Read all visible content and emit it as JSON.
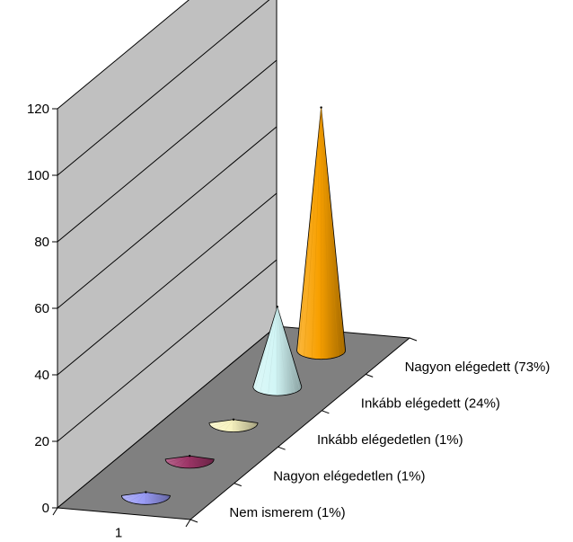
{
  "chart_data": {
    "type": "bar",
    "shape": "cone",
    "projection": "3d",
    "categories": [
      "1"
    ],
    "series": [
      {
        "name": "Nem ismerem (1%)",
        "values": [
          1
        ],
        "color": "#9a9cf6"
      },
      {
        "name": "Nagyon elégedetlen (1%)",
        "values": [
          1
        ],
        "color": "#9e3668"
      },
      {
        "name": "Inkább elégedetlen (1%)",
        "values": [
          1
        ],
        "color": "#f8f3c0"
      },
      {
        "name": "Inkább elégedett (24%)",
        "values": [
          24
        ],
        "color": "#d2f6f6"
      },
      {
        "name": "Nagyon elégedett (73%)",
        "values": [
          73
        ],
        "color": "#f8a000"
      }
    ],
    "y_ticks": [
      "0",
      "20",
      "40",
      "60",
      "80",
      "100",
      "120"
    ],
    "ylim": [
      0,
      120
    ],
    "grid": true,
    "wall_color": "#c0c0c0",
    "floor_color": "#808080"
  }
}
